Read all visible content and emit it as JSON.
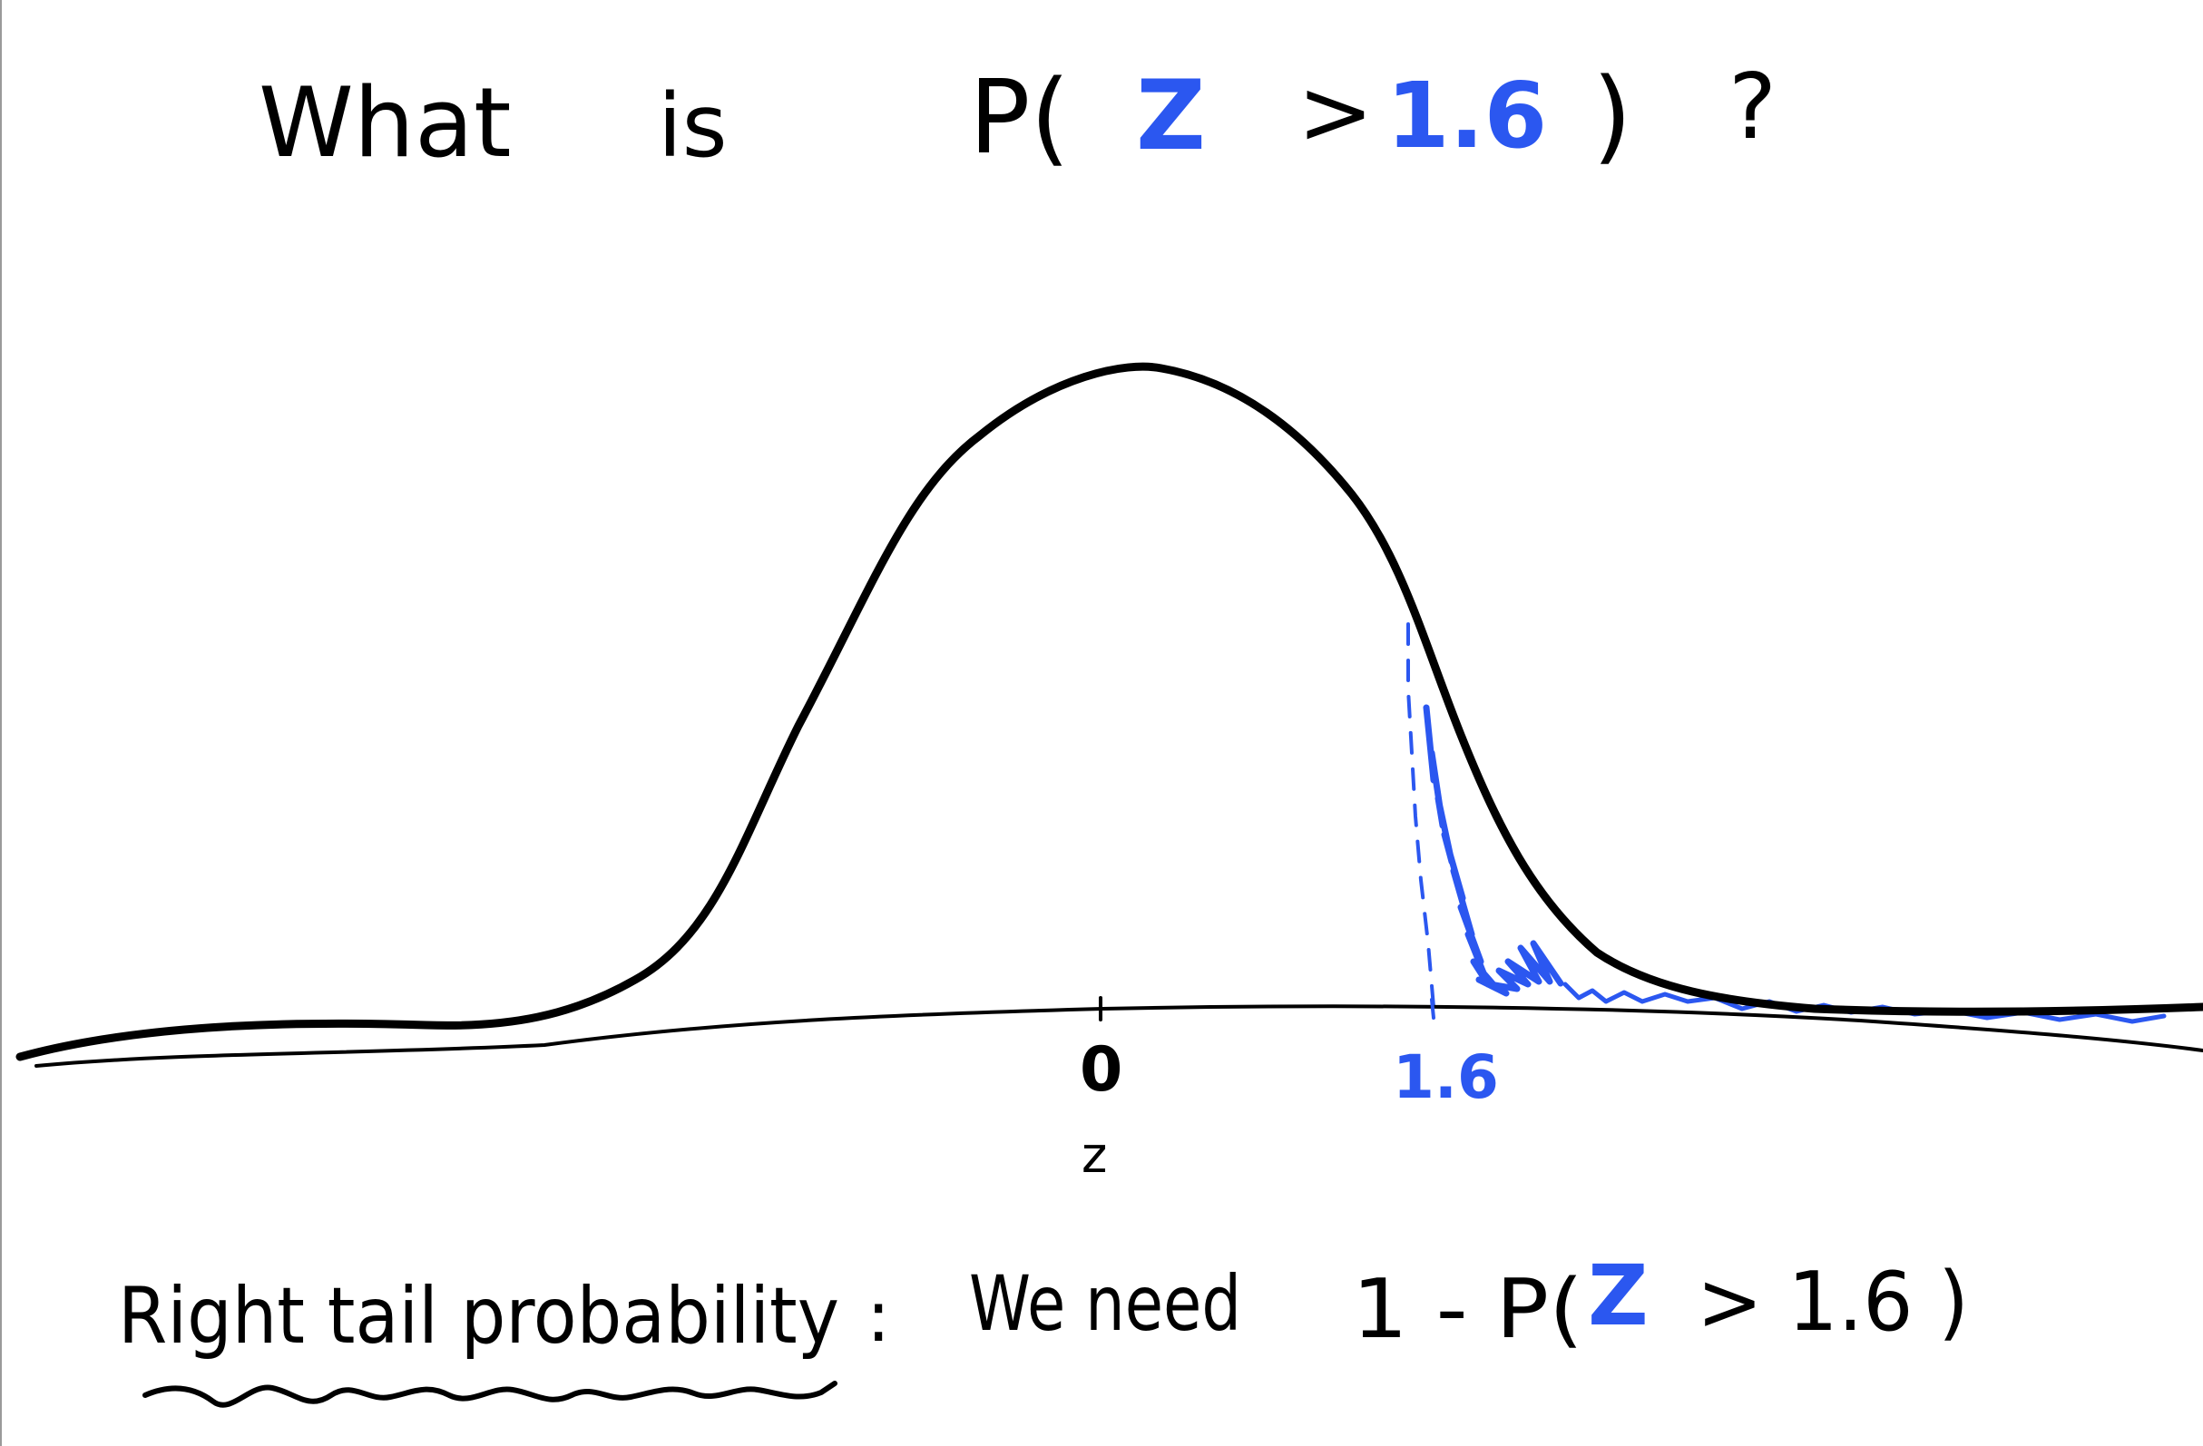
{
  "colors": {
    "ink": "#000000",
    "highlight": "#2b57f0"
  },
  "question": {
    "what": "What",
    "is": "is",
    "p_open": "P(",
    "var": "Z",
    "gt": ">",
    "value": "1.6",
    "close": ")",
    "qmark": "?"
  },
  "axis": {
    "zero_label": "0",
    "cut_label": "1.6",
    "var_label": "z"
  },
  "bottom": {
    "heading": "Right tail probability",
    "colon": ":",
    "lead": "We need",
    "formula_start": "1 - P(",
    "var": "Z",
    "formula_rest": "> 1.6 )"
  }
}
